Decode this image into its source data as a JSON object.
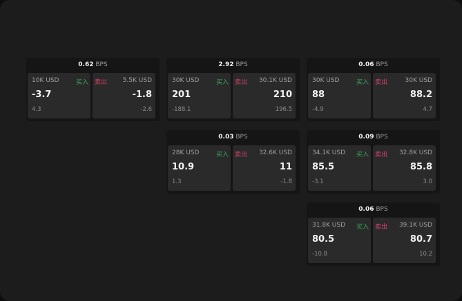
{
  "labels": {
    "bps": "BPS",
    "buy": "买入",
    "sell": "卖出"
  },
  "colors": {
    "buy": "#3aa55c",
    "sell": "#d8416a"
  },
  "widgets": [
    {
      "slot": "r0 c0",
      "spread": "0.62",
      "buy": {
        "qty": "10K USD",
        "price": "-3.7",
        "change": "4.3"
      },
      "sell": {
        "qty": "5.5K USD",
        "price": "-1.8",
        "change": "-2.6"
      }
    },
    {
      "slot": "r0 c1",
      "spread": "2.92",
      "buy": {
        "qty": "30K USD",
        "price": "201",
        "change": "-188.1"
      },
      "sell": {
        "qty": "30.1K USD",
        "price": "210",
        "change": "196.5"
      }
    },
    {
      "slot": "r0 c2",
      "spread": "0.06",
      "buy": {
        "qty": "30K USD",
        "price": "88",
        "change": "-4.9"
      },
      "sell": {
        "qty": "30K USD",
        "price": "88.2",
        "change": "4.7"
      }
    },
    {
      "slot": "r1 c1",
      "spread": "0.03",
      "buy": {
        "qty": "28K USD",
        "price": "10.9",
        "change": "1.3"
      },
      "sell": {
        "qty": "32.6K USD",
        "price": "11",
        "change": "-1.8"
      }
    },
    {
      "slot": "r1 c2",
      "spread": "0.09",
      "buy": {
        "qty": "34.1K USD",
        "price": "85.5",
        "change": "-3.1"
      },
      "sell": {
        "qty": "32.8K USD",
        "price": "85.8",
        "change": "3.0"
      }
    },
    {
      "slot": "r2 c2",
      "spread": "0.06",
      "buy": {
        "qty": "31.8K USD",
        "price": "80.5",
        "change": "-10.8"
      },
      "sell": {
        "qty": "39.1K USD",
        "price": "80.7",
        "change": "10.2"
      }
    }
  ]
}
